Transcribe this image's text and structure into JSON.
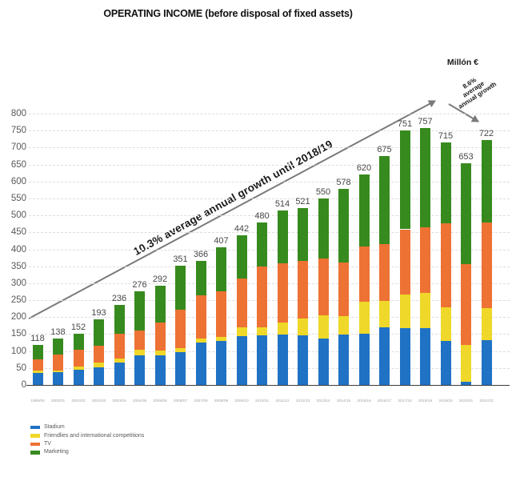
{
  "title": "OPERATING INCOME (before disposal of fixed assets)",
  "unit_label": "Millón €",
  "annotations": {
    "long_arrow_text": "10.3% average annual growth until 2018/19",
    "short_arrow_lines": [
      "8.6%",
      "average",
      "annual growth"
    ]
  },
  "colors": {
    "stadium": "#1f72c4",
    "friendlies": "#efd829",
    "tv": "#ed7234",
    "marketing": "#378a1e",
    "arrow": "#7a7a7a",
    "gridline": "#e2dcdc",
    "axis_line": "#3c3c3c",
    "value_label": "#474747",
    "y_tick_label": "#595959",
    "x_tick_label": "#a3a3a3"
  },
  "chart_data": {
    "type": "bar",
    "stacked": true,
    "title": "OPERATING INCOME (before disposal of fixed assets)",
    "unit": "Millón €",
    "ylim": [
      0,
      800
    ],
    "y_tick_step": 50,
    "grid": true,
    "legend_position": "bottom-left",
    "categories": [
      "1999/00",
      "2000/01",
      "2001/02",
      "2002/03",
      "2003/04",
      "2004/05",
      "2005/06",
      "2006/07",
      "2007/08",
      "2008/09",
      "2009/10",
      "2010/11",
      "2011/12",
      "2012/13",
      "2013/14",
      "2014/15",
      "2015/16",
      "2016/17",
      "2017/18",
      "2018/19",
      "2019/20",
      "2020/21",
      "2021/22"
    ],
    "series": [
      {
        "name": "Stadium",
        "color": "#1f72c4",
        "values": [
          35,
          37,
          44,
          52,
          65,
          87,
          88,
          96,
          125,
          130,
          144,
          146,
          148,
          146,
          138,
          148,
          151,
          171,
          168,
          167,
          130,
          10,
          132
        ]
      },
      {
        "name": "Friendlies and international competitions",
        "color": "#efd829",
        "values": [
          7,
          6,
          10,
          13,
          14,
          16,
          13,
          13,
          13,
          12,
          26,
          25,
          36,
          49,
          67,
          54,
          95,
          77,
          98,
          105,
          99,
          108,
          95
        ]
      },
      {
        "name": "TV",
        "color": "#ed7234",
        "values": [
          34,
          46,
          49,
          50,
          73,
          57,
          82,
          112,
          126,
          133,
          144,
          179,
          175,
          171,
          168,
          158,
          163,
          167,
          193,
          194,
          248,
          238,
          253
        ]
      },
      {
        "name": "Marketing",
        "color": "#378a1e",
        "values": [
          42,
          49,
          49,
          78,
          84,
          116,
          109,
          130,
          102,
          132,
          128,
          130,
          155,
          155,
          177,
          218,
          211,
          260,
          292,
          291,
          238,
          297,
          242
        ]
      }
    ],
    "totals": [
      118,
      138,
      152,
      193,
      236,
      276,
      292,
      351,
      366,
      407,
      442,
      480,
      514,
      521,
      550,
      578,
      620,
      675,
      751,
      757,
      715,
      653,
      722
    ],
    "annotations": [
      {
        "text": "10.3% average annual growth until 2018/19",
        "style": "diagonal-arrow"
      },
      {
        "text": "8.6% average annual growth",
        "style": "short-diagonal-arrow"
      }
    ]
  }
}
